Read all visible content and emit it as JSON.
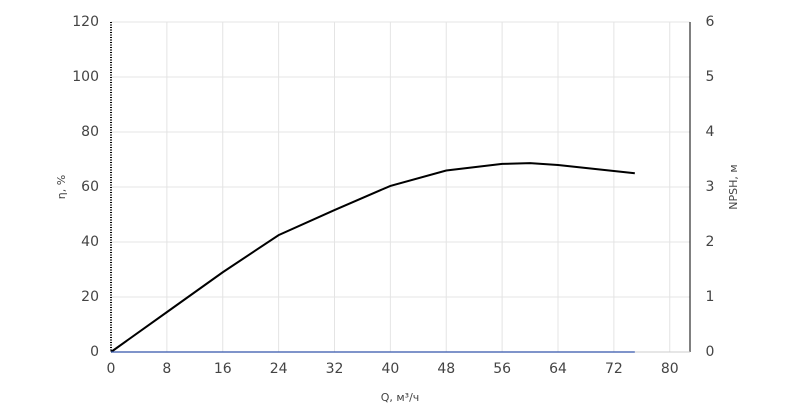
{
  "chart_data": {
    "type": "line",
    "xlabel": "Q, м³/ч",
    "ylabel": "η, %",
    "y2label": "NPSH, м",
    "x": [
      0,
      8,
      16,
      24,
      32,
      40,
      48,
      56,
      60,
      64,
      72,
      75
    ],
    "series": [
      {
        "name": "η",
        "color": "#000000",
        "values": [
          0,
          14.5,
          29,
          42.5,
          51.6,
          60.4,
          66,
          68.4,
          68.7,
          68,
          65.8,
          65
        ]
      },
      {
        "name": "NPSH",
        "color": "#3355aa",
        "axis": "y2",
        "values": [
          0,
          0,
          0,
          0,
          0,
          0,
          0,
          0,
          0,
          0,
          0,
          0
        ]
      }
    ],
    "xlim": [
      0,
      82.9
    ],
    "xticks": [
      0,
      8,
      16,
      24,
      32,
      40,
      48,
      56,
      64,
      72,
      80
    ],
    "ylim": [
      0,
      120
    ],
    "yticks": [
      0,
      20,
      40,
      60,
      80,
      100,
      120
    ],
    "y2lim": [
      0,
      6
    ],
    "y2ticks": [
      0,
      1,
      2,
      3,
      4,
      5,
      6
    ],
    "grid": true
  }
}
